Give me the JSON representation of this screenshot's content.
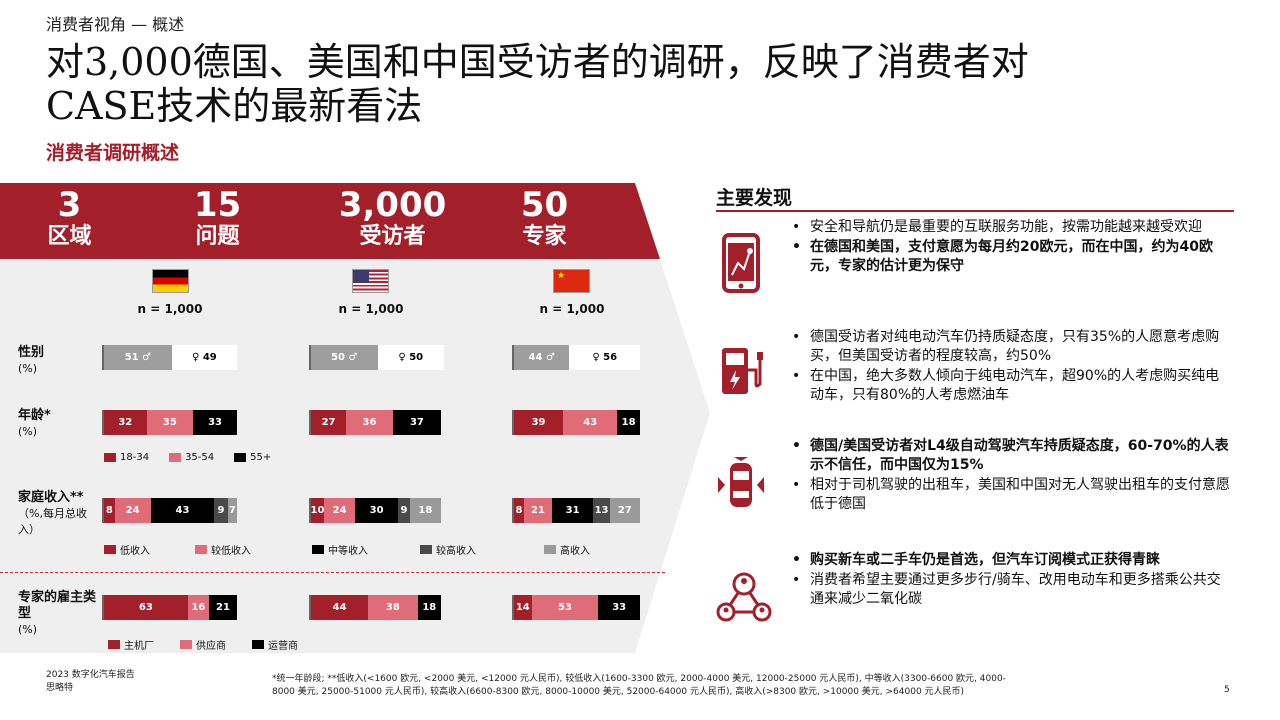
{
  "header": {
    "section": "消费者视角 — 概述",
    "title_line1": "对3,000德国、美国和中国受访者的调研，反映了消费者对",
    "title_line2": "CASE技术的最新看法",
    "subtitle": "消费者调研概述"
  },
  "stats": [
    {
      "num": "3",
      "label": "区域"
    },
    {
      "num": "15",
      "label": "问题"
    },
    {
      "num": "3,000",
      "label": "受访者"
    },
    {
      "num": "50",
      "label": "专家"
    }
  ],
  "countries": [
    {
      "flag": "germany-flag",
      "n": "n = 1,000"
    },
    {
      "flag": "usa-flag",
      "n": "n = 1,000"
    },
    {
      "flag": "china-flag",
      "n": "n = 1,000"
    }
  ],
  "rows": {
    "gender": {
      "label": "性别",
      "unit": "(%)"
    },
    "age": {
      "label": "年龄*",
      "unit": "(%)"
    },
    "income": {
      "label": "家庭收入**",
      "unit": "（%,每月总收入）"
    },
    "expert": {
      "label": "专家的雇主类型",
      "unit": "(%)"
    }
  },
  "gender": [
    {
      "male": "51",
      "female": "49",
      "male_share": 51
    },
    {
      "male": "50",
      "female": "50",
      "male_share": 50
    },
    {
      "male": "44",
      "female": "56",
      "male_share": 44
    }
  ],
  "age": [
    [
      "32",
      "35",
      "33"
    ],
    [
      "27",
      "36",
      "37"
    ],
    [
      "39",
      "43",
      "18"
    ]
  ],
  "income": [
    [
      "8",
      "24",
      "43",
      "9",
      "7"
    ],
    [
      "10",
      "24",
      "30",
      "9",
      "18"
    ],
    [
      "8",
      "21",
      "31",
      "13",
      "27"
    ]
  ],
  "expert": [
    [
      "63",
      "16",
      "21"
    ],
    [
      "44",
      "38",
      "18"
    ],
    [
      "14",
      "53",
      "33"
    ]
  ],
  "legends": {
    "age": [
      "18-34",
      "35-54",
      "55+"
    ],
    "income": [
      "低收入",
      "较低收入",
      "中等收入",
      "较高收入",
      "高收入"
    ],
    "expert": [
      "主机厂",
      "供应商",
      "运营商"
    ]
  },
  "findings": {
    "title": "主要发现",
    "groups": [
      {
        "icon": "smartphone-navigation-icon",
        "bullets": [
          "安全和导航仍是最重要的互联服务功能，按需功能越来越受欢迎",
          "在德国和美国，支付意愿为每月约20欧元，而在中国，约为40欧元，专家的估计更为保守"
        ]
      },
      {
        "icon": "ev-charger-icon",
        "bullets": [
          "德国受访者对纯电动汽车仍持质疑态度，只有35%的人愿意考虑购买，但美国受访者的程度较高，约50%",
          "在中国，绝大多数人倾向于纯电动汽车，超90%的人考虑购买纯电动车，只有80%的人考虑燃油车"
        ]
      },
      {
        "icon": "autonomous-car-icon",
        "bullets": [
          "德国/美国受访者对L4级自动驾驶汽车持质疑态度，60-70%的人表示不信任，而中国仅为15%",
          "相对于司机驾驶的出租车，美国和中国对无人驾驶出租车的支付意愿低于德国"
        ]
      },
      {
        "icon": "shared-mobility-icon",
        "bullets": [
          "购买新车或二手车仍是首选，但汽车订阅模式正获得青睐",
          "消费者希望主要通过更多步行/骑车、改用电动车和更多搭乘公共交通来减少二氧化碳"
        ]
      }
    ]
  },
  "footer": {
    "report": "2023 数字化汽车报告",
    "company": "思略特",
    "note_line1": "*统一年龄段; **低收入(<1600 欧元, <2000 美元, <12000 元人民币), 较低收入(1600-3300 欧元, 2000-4000 美元, 12000-25000 元人民币), 中等收入(3300-6600 欧元, 4000-",
    "note_line2": "8000 美元, 25000-51000 元人民币), 较高收入(6600-8300 欧元, 8000-10000 美元, 52000-64000 元人民币), 高收入(>8300 欧元, >10000 美元, >64000 元人民币)",
    "page": "5"
  },
  "colors": {
    "brand_red": "#a3202b",
    "pink": "#e06b79",
    "black": "#000000",
    "dark_gray": "#4a4a4a",
    "gray": "#9a9a9a"
  }
}
